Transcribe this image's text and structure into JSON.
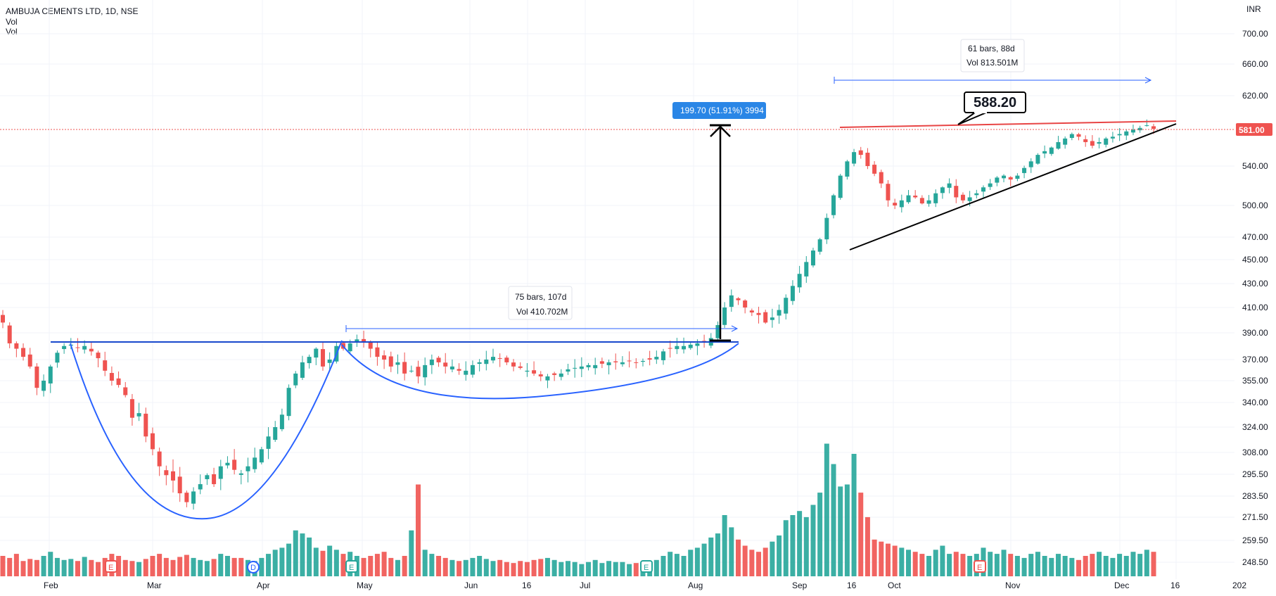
{
  "header": {
    "symbol": "AMBUJA CEMENTS LTD, 1D, NSE",
    "vol1": "Vol",
    "vol2": "Vol"
  },
  "chart_data": {
    "type": "candlestick",
    "currency": "INR",
    "y_axis_ticks": [
      "700.00",
      "660.00",
      "620.00",
      "540.00",
      "500.00",
      "470.00",
      "450.00",
      "430.00",
      "410.00",
      "390.00",
      "370.00",
      "355.00",
      "340.00",
      "324.00",
      "308.00",
      "295.50",
      "283.50",
      "271.50",
      "259.50",
      "248.50"
    ],
    "x_axis_ticks": [
      "Feb",
      "Mar",
      "Apr",
      "May",
      "Jun",
      "16",
      "Jul",
      "Aug",
      "Sep",
      "16",
      "Oct",
      "Nov",
      "Dec",
      "16",
      "202"
    ],
    "last_price": "581.00",
    "last_price_value": 581.0,
    "annotations": {
      "measure_1_line1": "75 bars, 107d",
      "measure_1_line2": "Vol 410.702M",
      "measure_2_line1": "61 bars, 88d",
      "measure_2_line2": "Vol 813.501M",
      "target_badge": "199.70 (51.91%) 3994",
      "resistance_label": "588.20"
    },
    "event_markers": [
      "E",
      "D",
      "E",
      "E",
      "E"
    ],
    "candles_close": [
      398,
      382,
      378,
      372,
      365,
      350,
      355,
      365,
      375,
      380,
      381,
      379,
      380,
      376,
      371,
      362,
      355,
      352,
      345,
      330,
      333,
      318,
      310,
      300,
      295,
      292,
      285,
      280,
      286,
      290,
      295,
      290,
      300,
      302,
      298,
      296,
      300,
      305,
      310,
      318,
      324,
      332,
      350,
      360,
      368,
      372,
      378,
      365,
      370,
      380,
      378,
      382,
      385,
      383,
      378,
      372,
      370,
      365,
      368,
      360,
      362,
      358,
      366,
      370,
      368,
      365,
      365,
      362,
      362,
      366,
      368,
      370,
      372,
      371,
      368,
      365,
      364,
      362,
      360,
      358,
      358,
      359,
      360,
      363,
      364,
      365,
      366,
      366,
      367,
      368,
      368,
      368,
      369,
      368,
      369,
      370,
      372,
      376,
      378,
      380,
      380,
      381,
      382,
      383,
      386,
      396,
      410,
      420,
      416,
      410,
      406,
      404,
      398,
      402,
      408,
      418,
      428,
      438,
      448,
      458,
      468,
      488,
      510,
      530,
      545,
      555,
      552,
      540,
      532,
      522,
      505,
      500,
      505,
      510,
      508,
      502,
      505,
      512,
      518,
      522,
      508,
      505,
      508,
      512,
      518,
      522,
      528,
      530,
      526,
      530,
      538,
      545,
      552,
      556,
      560,
      566,
      570,
      575,
      572,
      566,
      562,
      566,
      570,
      572,
      575,
      578,
      580,
      582,
      585,
      581
    ],
    "volume_bars": [
      20,
      18,
      22,
      15,
      17,
      16,
      20,
      24,
      18,
      16,
      17,
      15,
      19,
      16,
      14,
      18,
      22,
      20,
      16,
      15,
      14,
      17,
      20,
      22,
      18,
      16,
      19,
      21,
      18,
      16,
      15,
      17,
      22,
      20,
      18,
      18,
      16,
      15,
      18,
      22,
      26,
      28,
      32,
      45,
      42,
      38,
      28,
      25,
      30,
      26,
      22,
      24,
      20,
      18,
      20,
      22,
      24,
      18,
      16,
      20,
      45,
      90,
      26,
      22,
      20,
      18,
      16,
      15,
      16,
      18,
      20,
      17,
      15,
      16,
      14,
      13,
      15,
      14,
      16,
      17,
      18,
      16,
      14,
      15,
      14,
      12,
      14,
      16,
      13,
      15,
      14,
      14,
      12,
      13,
      12,
      14,
      16,
      20,
      24,
      22,
      20,
      26,
      28,
      32,
      38,
      42,
      60,
      48,
      36,
      30,
      26,
      24,
      28,
      34,
      40,
      55,
      60,
      64,
      58,
      70,
      82,
      130,
      110,
      88,
      90,
      120,
      82,
      58,
      36,
      34,
      32,
      30,
      28,
      26,
      24,
      22,
      20,
      26,
      30,
      22,
      24,
      22,
      20,
      22,
      28,
      24,
      22,
      26,
      22,
      20,
      18,
      22,
      24,
      20,
      18,
      22,
      20,
      18,
      16,
      20,
      22,
      24,
      20,
      18,
      22,
      20,
      24,
      22,
      26,
      24
    ]
  }
}
